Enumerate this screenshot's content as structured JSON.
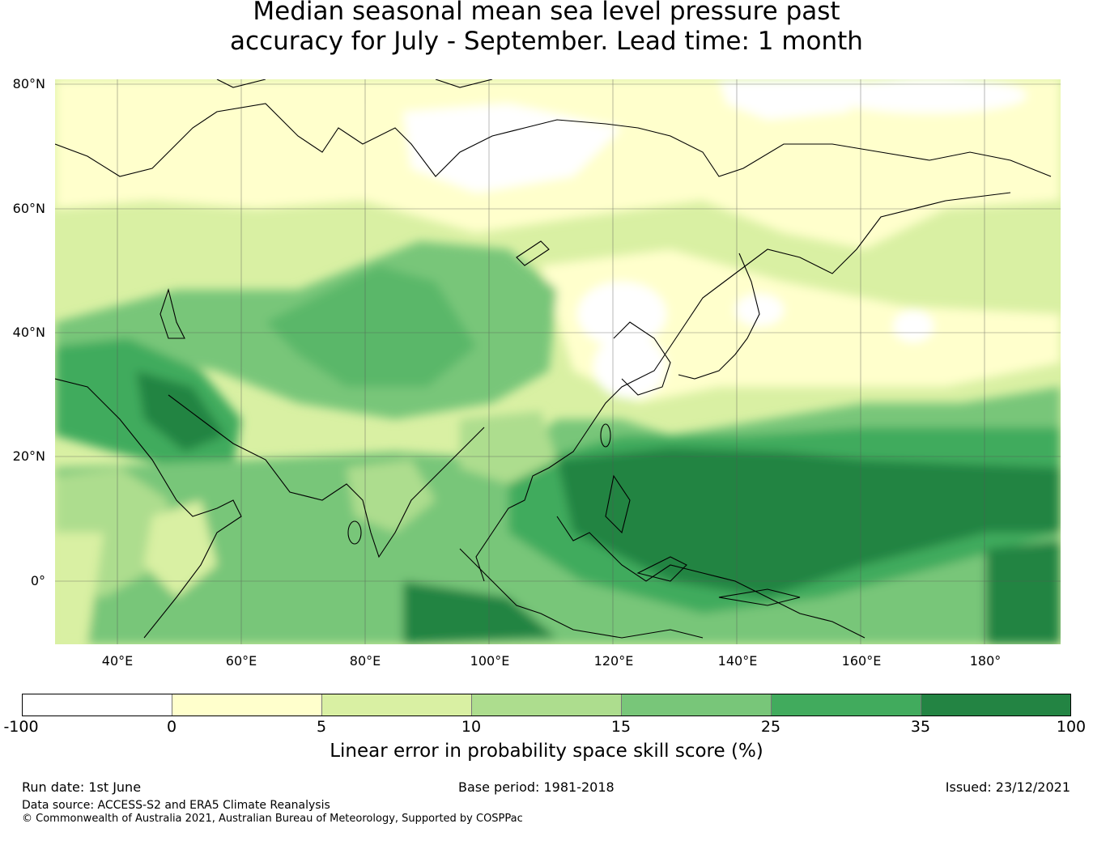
{
  "title": {
    "line1": "Median seasonal mean sea level pressure past",
    "line2": "accuracy for July - September. Lead time: 1 month"
  },
  "map": {
    "lat_labels": [
      "80°N",
      "60°N",
      "40°N",
      "20°N",
      "0°"
    ],
    "lon_labels": [
      "40°E",
      "60°E",
      "80°E",
      "100°E",
      "120°E",
      "140°E",
      "160°E",
      "180°"
    ],
    "extent": {
      "lon_min": 30,
      "lon_max": 192,
      "lat_min": -11,
      "lat_max": 80
    }
  },
  "colorbar": {
    "ticks": [
      "-100",
      "0",
      "5",
      "10",
      "15",
      "25",
      "35",
      "100"
    ],
    "colors": [
      "#ffffff",
      "#ffffcc",
      "#d9f0a3",
      "#addd8e",
      "#78c679",
      "#41ab5d",
      "#238443"
    ],
    "label": "Linear error in probability space skill score (%)"
  },
  "footer": {
    "run_date": "Run date: 1st June",
    "base_period": "Base period: 1981-2018",
    "issued": "Issued: 23/12/2021",
    "data_source": "Data source: ACCESS-S2 and ERA5 Climate Reanalysis",
    "copyright": "© Commonwealth of Australia 2021, Australian Bureau of Meteorology, Supported by COSPPac"
  }
}
